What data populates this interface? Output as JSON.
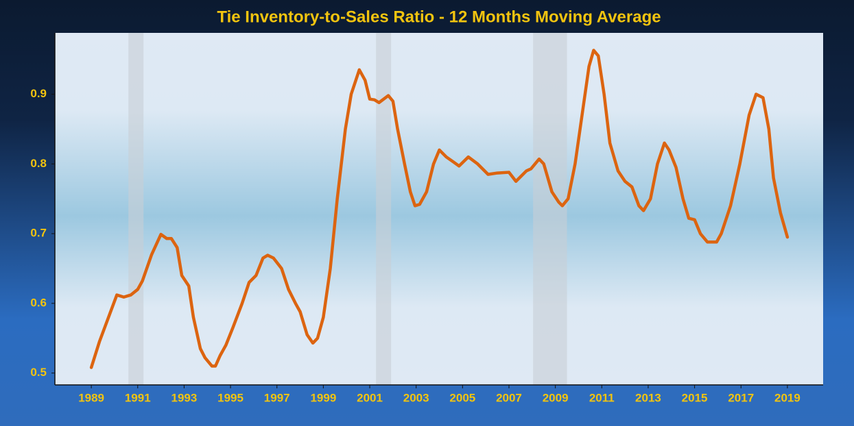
{
  "chart_data": {
    "type": "line",
    "title": "Tie Inventory-to-Sales Ratio - 12 Months Moving Average",
    "color": "#dc6410",
    "x": [
      1989.0,
      1989.35,
      1990.1,
      1990.4,
      1990.7,
      1991.0,
      1991.2,
      1991.6,
      1992.0,
      1992.25,
      1992.45,
      1992.7,
      1992.9,
      1993.2,
      1993.4,
      1993.7,
      1993.9,
      1994.2,
      1994.35,
      1994.55,
      1994.8,
      1995.1,
      1995.5,
      1995.8,
      1996.1,
      1996.4,
      1996.6,
      1996.85,
      1997.2,
      1997.5,
      1997.8,
      1998.0,
      1998.3,
      1998.55,
      1998.75,
      1999.0,
      1999.3,
      1999.6,
      1999.95,
      2000.2,
      2000.55,
      2000.8,
      2001.0,
      2001.2,
      2001.4,
      2001.8,
      2002.0,
      2002.2,
      2002.5,
      2002.75,
      2002.95,
      2003.15,
      2003.45,
      2003.75,
      2004.0,
      2004.3,
      2004.6,
      2004.85,
      2005.25,
      2005.65,
      2006.1,
      2006.5,
      2007.0,
      2007.3,
      2007.75,
      2007.95,
      2008.3,
      2008.5,
      2008.85,
      2009.15,
      2009.3,
      2009.55,
      2009.85,
      2010.15,
      2010.45,
      2010.65,
      2010.85,
      2011.1,
      2011.35,
      2011.7,
      2012.0,
      2012.3,
      2012.6,
      2012.8,
      2013.1,
      2013.4,
      2013.7,
      2013.9,
      2014.2,
      2014.5,
      2014.75,
      2015.0,
      2015.25,
      2015.55,
      2015.95,
      2016.15,
      2016.55,
      2016.95,
      2017.35,
      2017.65,
      2017.95,
      2018.2,
      2018.4,
      2018.7,
      2019.0
    ],
    "values": [
      0.508,
      0.545,
      0.612,
      0.609,
      0.612,
      0.62,
      0.632,
      0.67,
      0.699,
      0.693,
      0.693,
      0.68,
      0.64,
      0.625,
      0.58,
      0.535,
      0.522,
      0.51,
      0.51,
      0.525,
      0.54,
      0.565,
      0.6,
      0.63,
      0.64,
      0.665,
      0.669,
      0.665,
      0.65,
      0.62,
      0.6,
      0.588,
      0.555,
      0.543,
      0.55,
      0.58,
      0.65,
      0.75,
      0.85,
      0.9,
      0.935,
      0.92,
      0.893,
      0.892,
      0.888,
      0.898,
      0.89,
      0.85,
      0.8,
      0.76,
      0.74,
      0.742,
      0.76,
      0.8,
      0.82,
      0.81,
      0.803,
      0.797,
      0.81,
      0.8,
      0.785,
      0.787,
      0.788,
      0.775,
      0.79,
      0.793,
      0.807,
      0.8,
      0.76,
      0.745,
      0.74,
      0.75,
      0.8,
      0.87,
      0.94,
      0.963,
      0.955,
      0.9,
      0.83,
      0.79,
      0.775,
      0.767,
      0.74,
      0.733,
      0.75,
      0.8,
      0.83,
      0.82,
      0.795,
      0.75,
      0.722,
      0.72,
      0.7,
      0.688,
      0.688,
      0.7,
      0.74,
      0.8,
      0.87,
      0.9,
      0.895,
      0.85,
      0.78,
      0.73,
      0.695
    ],
    "shaded_ranges": [
      [
        1990.6,
        1991.25
      ],
      [
        2001.27,
        2001.92
      ],
      [
        2008.04,
        2009.5
      ]
    ],
    "xlim": [
      1987.43,
      2020.54
    ],
    "xticks": [
      1989,
      1991,
      1993,
      1995,
      1997,
      1999,
      2001,
      2003,
      2005,
      2007,
      2009,
      2011,
      2013,
      2015,
      2017,
      2019
    ],
    "ylim": [
      0.483,
      0.988
    ],
    "yticks": [
      0.5,
      0.6,
      0.7,
      0.8,
      0.9
    ]
  }
}
